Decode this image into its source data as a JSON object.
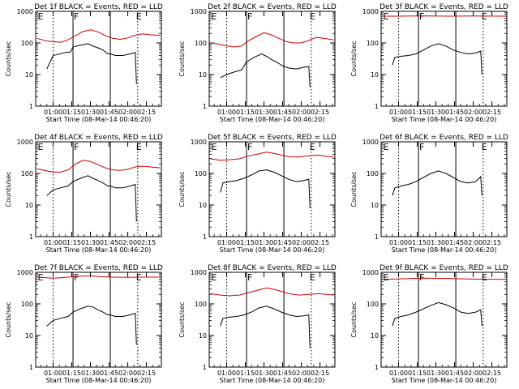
{
  "page": {
    "background": "#ffffff"
  },
  "chart_data": {
    "type": "line",
    "yscale": "log",
    "ylim": [
      1,
      1000
    ],
    "yticks": [
      1,
      10,
      100,
      1000
    ],
    "ytick_labels": [
      "1",
      "10",
      "100",
      "1000"
    ],
    "ylabel": "Counts/sec",
    "xlabel": "Start Time (08-Mar-14 00:46:20)",
    "xlim": [
      "00:46",
      "02:27"
    ],
    "xtick_labels": [
      "01:00",
      "01:15",
      "01:30",
      "01:45",
      "02:00",
      "02:15"
    ],
    "xtick_minutes": [
      60,
      75,
      90,
      105,
      120,
      135
    ],
    "markers": {
      "dotted": [
        60,
        128
      ],
      "solid": [
        76,
        106
      ],
      "letters": [
        {
          "text": "E",
          "at": 47
        },
        {
          "text": "F",
          "at": 76
        },
        {
          "text": "E",
          "at": 126
        }
      ]
    },
    "colors": {
      "events": "#000000",
      "lld": "#d00000"
    },
    "panels": [
      {
        "title": "Det 1f BLACK = Events, RED = LLD",
        "series": [
          {
            "name": "Events",
            "x": [
              55,
              60,
              70,
              74,
              76,
              82,
              88,
              92,
              96,
              100,
              104,
              106,
              110,
              116,
              122,
              126,
              127
            ],
            "y": [
              15,
              40,
              50,
              52,
              75,
              85,
              95,
              80,
              70,
              60,
              45,
              45,
              40,
              40,
              45,
              50,
              5
            ]
          },
          {
            "name": "LLD",
            "x": [
              47,
              55,
              60,
              66,
              72,
              78,
              84,
              90,
              96,
              102,
              108,
              114,
              120,
              126,
              132,
              138,
              146
            ],
            "y": [
              140,
              115,
              110,
              105,
              125,
              170,
              230,
              260,
              225,
              170,
              140,
              130,
              145,
              175,
              195,
              180,
              175
            ]
          }
        ]
      },
      {
        "title": "Det 2f BLACK = Events, RED = LLD",
        "series": [
          {
            "name": "Events",
            "x": [
              55,
              60,
              66,
              72,
              76,
              82,
              88,
              92,
              96,
              100,
              104,
              106,
              110,
              116,
              122,
              126,
              127
            ],
            "y": [
              8,
              10,
              12,
              14,
              25,
              35,
              45,
              38,
              30,
              25,
              20,
              18,
              16,
              15,
              17,
              18,
              4
            ]
          },
          {
            "name": "LLD",
            "x": [
              47,
              55,
              60,
              66,
              72,
              78,
              84,
              90,
              96,
              102,
              108,
              114,
              120,
              126,
              132,
              138,
              146
            ],
            "y": [
              100,
              90,
              80,
              75,
              80,
              120,
              160,
              210,
              180,
              140,
              110,
              100,
              100,
              120,
              150,
              140,
              125
            ]
          }
        ]
      },
      {
        "title": "Det 3f BLACK = Events, RED = LLD",
        "series": [
          {
            "name": "Events",
            "x": [
              55,
              57,
              62,
              68,
              74,
              80,
              86,
              92,
              98,
              104,
              110,
              116,
              122,
              126,
              127
            ],
            "y": [
              20,
              35,
              38,
              40,
              45,
              60,
              80,
              95,
              80,
              60,
              50,
              45,
              48,
              55,
              10
            ]
          },
          {
            "name": "LLD",
            "x": [
              47,
              60,
              80,
              100,
              120,
              146
            ],
            "y": [
              700,
              700,
              720,
              700,
              710,
              700
            ]
          }
        ]
      },
      {
        "title": "Det 4f BLACK = Events, RED = LLD",
        "series": [
          {
            "name": "Events",
            "x": [
              55,
              60,
              66,
              72,
              76,
              82,
              88,
              92,
              96,
              100,
              104,
              106,
              110,
              116,
              122,
              126,
              127
            ],
            "y": [
              20,
              30,
              35,
              40,
              55,
              70,
              85,
              70,
              60,
              50,
              40,
              40,
              35,
              35,
              40,
              45,
              3
            ]
          },
          {
            "name": "LLD",
            "x": [
              47,
              55,
              60,
              66,
              72,
              78,
              84,
              90,
              96,
              102,
              108,
              114,
              120,
              126,
              132,
              138,
              146
            ],
            "y": [
              140,
              120,
              110,
              110,
              130,
              200,
              260,
              240,
              190,
              150,
              130,
              125,
              135,
              160,
              170,
              160,
              150
            ]
          }
        ]
      },
      {
        "title": "Det 5f BLACK = Events, RED = LLD",
        "series": [
          {
            "name": "Events",
            "x": [
              55,
              57,
              62,
              68,
              74,
              80,
              86,
              92,
              98,
              104,
              110,
              116,
              122,
              126,
              127
            ],
            "y": [
              25,
              50,
              55,
              60,
              70,
              90,
              120,
              130,
              110,
              85,
              65,
              55,
              60,
              65,
              8
            ]
          },
          {
            "name": "LLD",
            "x": [
              47,
              55,
              62,
              70,
              78,
              86,
              92,
              98,
              104,
              110,
              118,
              126,
              134,
              140,
              146
            ],
            "y": [
              290,
              260,
              270,
              290,
              360,
              420,
              470,
              430,
              380,
              340,
              330,
              360,
              380,
              350,
              330
            ]
          }
        ]
      },
      {
        "title": "Det 6f BLACK = Events, RED = LLD",
        "series": [
          {
            "name": "Events",
            "x": [
              55,
              57,
              62,
              68,
              74,
              80,
              86,
              92,
              98,
              104,
              110,
              116,
              122,
              126,
              127
            ],
            "y": [
              20,
              35,
              40,
              45,
              55,
              75,
              100,
              120,
              100,
              75,
              55,
              50,
              55,
              80,
              20
            ]
          }
        ]
      },
      {
        "title": "Det 7f BLACK = Events, RED = LLD",
        "series": [
          {
            "name": "Events",
            "x": [
              55,
              60,
              66,
              72,
              76,
              82,
              88,
              92,
              96,
              100,
              104,
              106,
              110,
              116,
              122,
              126,
              127
            ],
            "y": [
              20,
              30,
              35,
              40,
              55,
              70,
              85,
              80,
              65,
              55,
              45,
              45,
              40,
              40,
              45,
              50,
              5
            ]
          },
          {
            "name": "LLD",
            "x": [
              47,
              60,
              70,
              80,
              90,
              100,
              110,
              120,
              130,
              146
            ],
            "y": [
              700,
              650,
              690,
              750,
              780,
              720,
              700,
              690,
              700,
              700
            ]
          }
        ]
      },
      {
        "title": "Det 8f BLACK = Events, RED = LLD",
        "series": [
          {
            "name": "Events",
            "x": [
              55,
              57,
              62,
              68,
              74,
              80,
              86,
              92,
              98,
              104,
              110,
              116,
              122,
              126,
              127
            ],
            "y": [
              20,
              35,
              38,
              40,
              45,
              55,
              75,
              85,
              70,
              55,
              45,
              40,
              42,
              45,
              4
            ]
          },
          {
            "name": "LLD",
            "x": [
              47,
              55,
              62,
              70,
              78,
              86,
              92,
              98,
              104,
              110,
              118,
              126,
              134,
              140,
              146
            ],
            "y": [
              210,
              190,
              180,
              190,
              230,
              280,
              320,
              290,
              250,
              210,
              190,
              200,
              210,
              200,
              190
            ]
          }
        ]
      },
      {
        "title": "Det 9f BLACK = Events, RED = LLD",
        "series": [
          {
            "name": "Events",
            "x": [
              55,
              57,
              62,
              68,
              74,
              80,
              86,
              92,
              98,
              104,
              110,
              116,
              122,
              126,
              127
            ],
            "y": [
              20,
              35,
              40,
              45,
              55,
              70,
              90,
              110,
              95,
              75,
              55,
              50,
              55,
              65,
              20
            ]
          },
          {
            "name": "LLD",
            "x": [
              47,
              60,
              80,
              100,
              120,
              146
            ],
            "y": [
              600,
              620,
              650,
              640,
              610,
              600
            ]
          }
        ]
      }
    ]
  }
}
